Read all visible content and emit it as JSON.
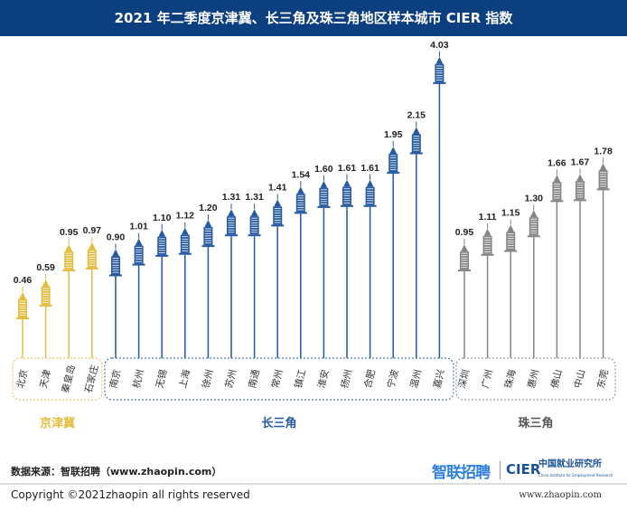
{
  "title": "2021 年二季度京津冀、长三角及珠三角地区样本城市 CIER 指数",
  "footer": {
    "source": "数据来源：智联招聘（www.zhaopin.com）",
    "copyright": "Copyright ©2021zhaopin all rights reserved",
    "url": "www.zhaopin.com",
    "logo_zhaopin": "智联招聘",
    "logo_cier": "CIER",
    "logo_cier_cn": "中国就业研究所",
    "logo_cier_en": "China Institute for Employment Research"
  },
  "chart_data": {
    "type": "bar",
    "title": "2021 年二季度京津冀、长三角及珠三角地区样本城市 CIER 指数",
    "groups": [
      {
        "name": "京津冀",
        "color": "#e2bd3f",
        "categories": [
          "北京",
          "天津",
          "秦皇岛",
          "石家庄"
        ],
        "values": [
          0.46,
          0.59,
          0.95,
          0.97
        ]
      },
      {
        "name": "长三角",
        "color": "#2659a3",
        "categories": [
          "南京",
          "杭州",
          "无锡",
          "上海",
          "徐州",
          "苏州",
          "南通",
          "常州",
          "镇江",
          "淮安",
          "扬州",
          "合肥",
          "宁波",
          "温州",
          "嘉兴"
        ],
        "values": [
          0.9,
          1.01,
          1.1,
          1.12,
          1.2,
          1.31,
          1.31,
          1.41,
          1.54,
          1.6,
          1.61,
          1.61,
          1.95,
          2.15,
          4.03
        ]
      },
      {
        "name": "珠三角",
        "color": "#858585",
        "categories": [
          "深圳",
          "广州",
          "珠海",
          "惠州",
          "佛山",
          "中山",
          "东莞"
        ],
        "values": [
          0.95,
          1.11,
          1.15,
          1.3,
          1.66,
          1.67,
          1.78
        ]
      }
    ],
    "grid": false
  }
}
